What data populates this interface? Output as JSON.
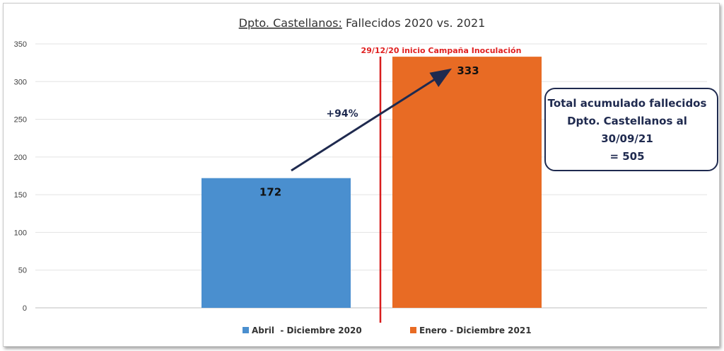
{
  "chart_data": {
    "type": "bar",
    "title_part1": "Dpto. Castellanos:",
    "title_part2": " Fallecidos 2020 vs. 2021",
    "categories": [
      "Abril  - Diciembre 2020",
      "Enero - Diciembre 2021"
    ],
    "values": [
      172,
      333
    ],
    "data_labels": [
      "172",
      "333"
    ],
    "ylim": [
      0,
      350
    ],
    "yticks": [
      0,
      50,
      100,
      150,
      200,
      250,
      300,
      350
    ],
    "grid": true,
    "legend_position": "bottom",
    "annotations": {
      "vertical_line_label": "29/12/20 inicio Campaña  Inoculación",
      "change_label": "+94%",
      "total_box_lines": [
        "Total acumulado fallecidos",
        "Dpto. Castellanos al",
        "30/09/21",
        "= 505"
      ]
    },
    "colors": {
      "bar1": "#4a8fcf",
      "bar2": "#e86b24",
      "vertical_line": "#d81c1c",
      "arrow": "#1f2a4f",
      "box_border": "#1f2a4f"
    }
  }
}
